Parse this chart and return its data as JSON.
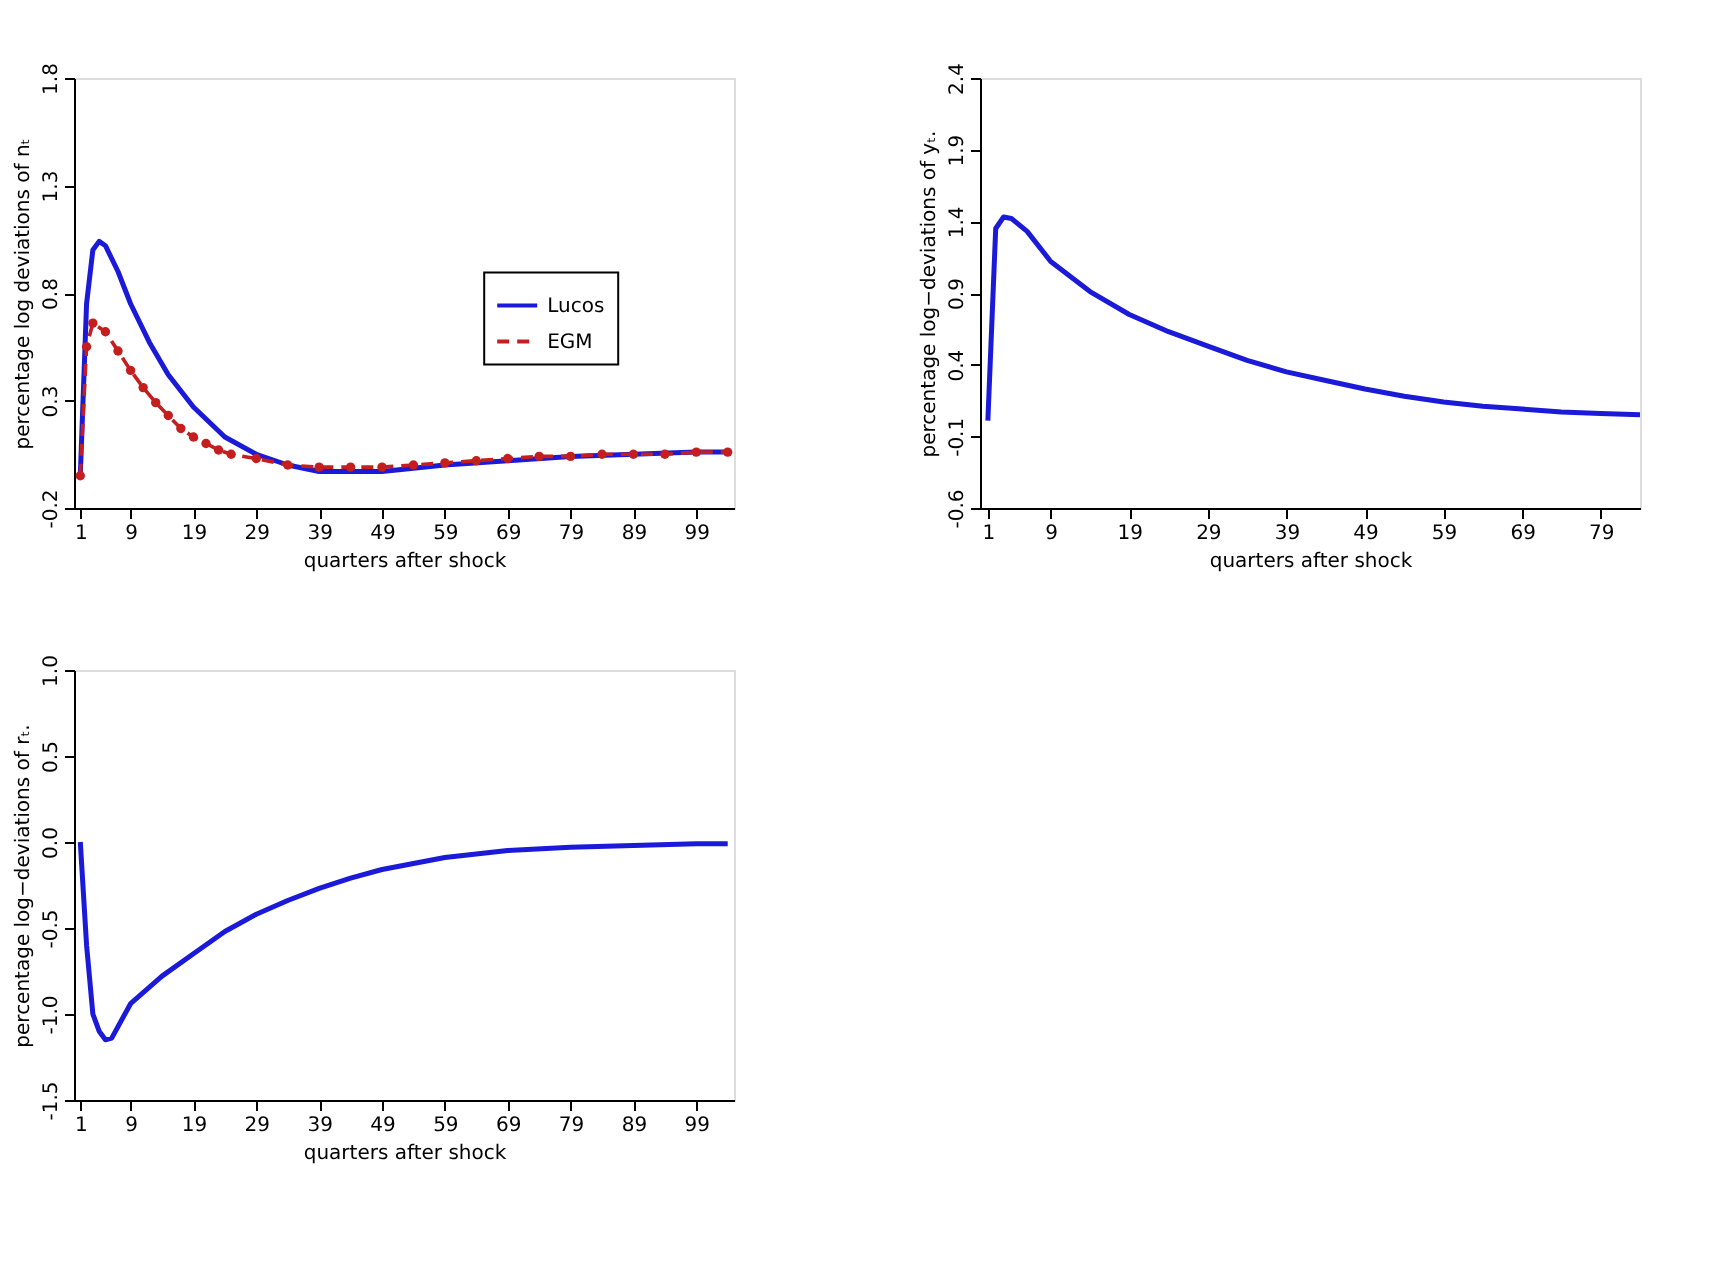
{
  "chart_data": [
    {
      "type": "line",
      "xlabel": "quarters after shock",
      "ylabel": "percentage log deviations of nₜ",
      "xlim": [
        0,
        105
      ],
      "xticks": [
        1,
        9,
        19,
        29,
        39,
        49,
        59,
        69,
        79,
        89,
        99
      ],
      "ylim": [
        -0.2,
        1.8
      ],
      "yticks": [
        -0.2,
        0.3,
        0.8,
        1.3,
        1.8
      ],
      "grid": false,
      "legend": "right",
      "series": [
        {
          "name": "Lucos",
          "color": "#1a1ad8",
          "line_style": "solid",
          "marker": "none",
          "x": [
            1,
            2,
            3,
            4,
            5,
            7,
            9,
            12,
            15,
            19,
            24,
            29,
            34,
            39,
            49,
            59,
            69,
            79,
            89,
            99,
            104
          ],
          "values": [
            -0.05,
            0.75,
            1.0,
            1.04,
            1.02,
            0.9,
            0.75,
            0.57,
            0.42,
            0.27,
            0.13,
            0.05,
            0.0,
            -0.03,
            -0.03,
            0.0,
            0.02,
            0.04,
            0.05,
            0.06,
            0.06
          ]
        },
        {
          "name": "EGM",
          "color": "#c41e1e",
          "line_style": "dashed",
          "marker": "circle",
          "x": [
            1,
            2,
            3,
            5,
            7,
            9,
            11,
            13,
            15,
            17,
            19,
            21,
            23,
            25,
            29,
            34,
            39,
            44,
            49,
            54,
            59,
            64,
            69,
            74,
            79,
            84,
            89,
            94,
            99,
            104
          ],
          "values": [
            -0.05,
            0.55,
            0.66,
            0.62,
            0.53,
            0.44,
            0.36,
            0.29,
            0.23,
            0.17,
            0.13,
            0.1,
            0.07,
            0.05,
            0.03,
            0.0,
            -0.01,
            -0.01,
            -0.01,
            0.0,
            0.01,
            0.02,
            0.03,
            0.04,
            0.04,
            0.05,
            0.05,
            0.05,
            0.06,
            0.06
          ]
        }
      ]
    },
    {
      "type": "line",
      "xlabel": "quarters after shock",
      "ylabel": "percentage log−deviations of yₜ.",
      "xlim": [
        0,
        84
      ],
      "xticks": [
        1,
        9,
        19,
        29,
        39,
        49,
        59,
        69,
        79
      ],
      "ylim": [
        -0.6,
        2.4
      ],
      "yticks": [
        -0.6,
        -0.1,
        0.4,
        0.9,
        1.4,
        1.9,
        2.4
      ],
      "grid": false,
      "series": [
        {
          "color": "#1a1ad8",
          "line_style": "solid",
          "marker": "none",
          "x": [
            1,
            2,
            3,
            4,
            6,
            9,
            14,
            19,
            24,
            29,
            34,
            39,
            44,
            49,
            54,
            59,
            64,
            69,
            74,
            79,
            84
          ],
          "values": [
            0.01,
            1.35,
            1.43,
            1.42,
            1.33,
            1.12,
            0.91,
            0.75,
            0.63,
            0.53,
            0.43,
            0.35,
            0.29,
            0.23,
            0.18,
            0.14,
            0.11,
            0.09,
            0.07,
            0.06,
            0.05
          ]
        }
      ]
    },
    {
      "type": "line",
      "xlabel": "quarters after shock",
      "ylabel": "percentage log−deviations of rₜ.",
      "xlim": [
        0,
        105
      ],
      "xticks": [
        1,
        9,
        19,
        29,
        39,
        49,
        59,
        69,
        79,
        89,
        99
      ],
      "ylim": [
        -1.5,
        1.0
      ],
      "yticks": [
        -1.5,
        {
          "value": -1,
          "label": "-1.0"
        },
        -0.5,
        {
          "value": 0,
          "label": "0.0"
        },
        0.5,
        {
          "value": 1,
          "label": "1.0"
        }
      ],
      "grid": false,
      "series": [
        {
          "color": "#1a1ad8",
          "line_style": "solid",
          "marker": "none",
          "x": [
            1,
            2,
            3,
            4,
            5,
            6,
            9,
            14,
            19,
            24,
            29,
            34,
            39,
            44,
            49,
            59,
            69,
            79,
            89,
            99,
            104
          ],
          "values": [
            0.0,
            -0.6,
            -1.0,
            -1.1,
            -1.15,
            -1.14,
            -0.94,
            -0.78,
            -0.65,
            -0.52,
            -0.42,
            -0.34,
            -0.27,
            -0.21,
            -0.16,
            -0.09,
            -0.05,
            -0.03,
            -0.02,
            -0.01,
            -0.01
          ]
        }
      ]
    }
  ]
}
